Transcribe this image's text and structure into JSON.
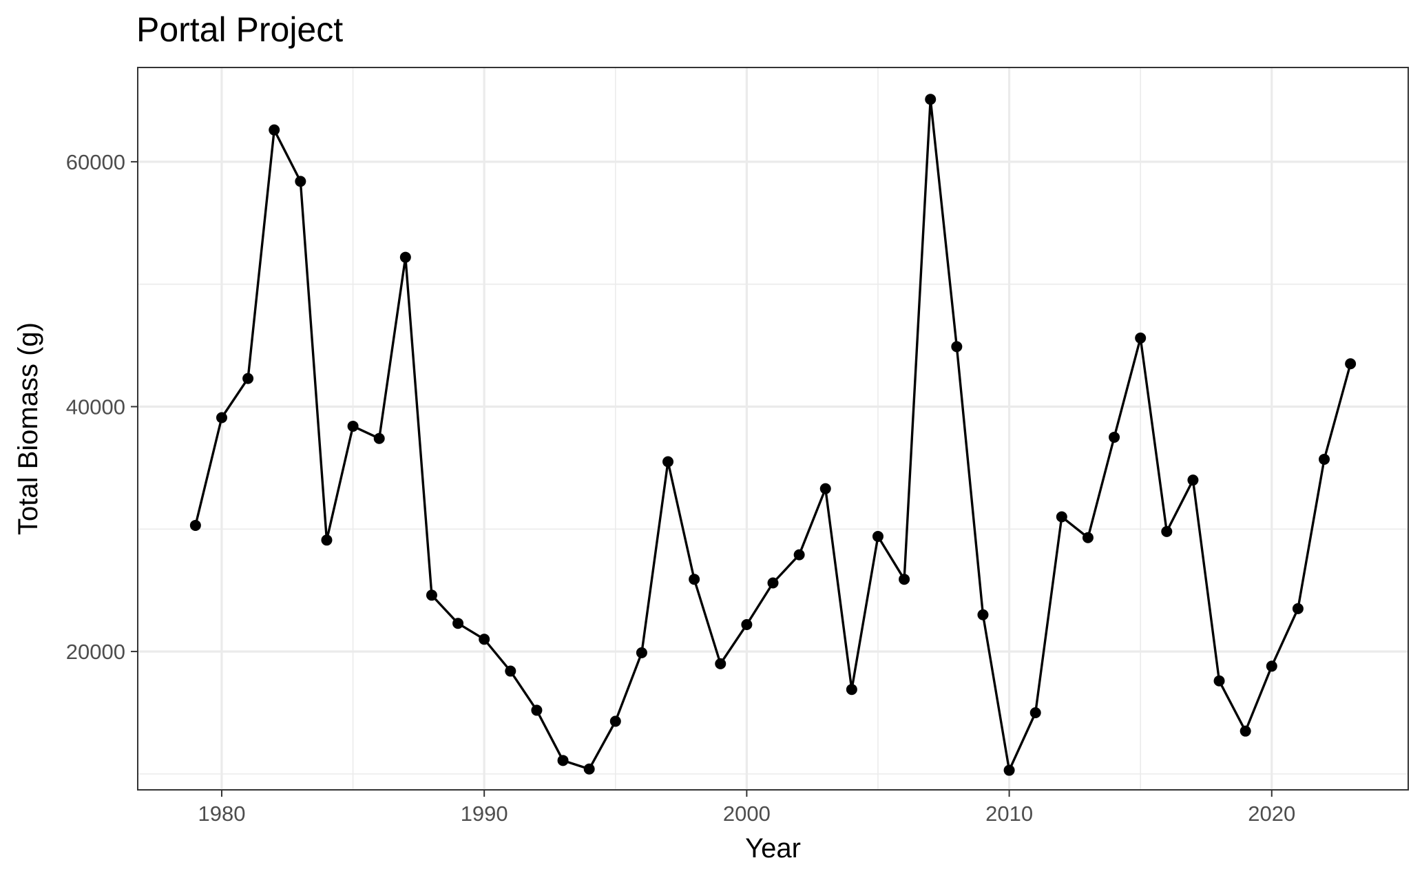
{
  "chart_data": {
    "type": "line",
    "title": "Portal Project",
    "xlabel": "Year",
    "ylabel": "Total Biomass (g)",
    "xlim": [
      1976.8,
      2025.2
    ],
    "ylim": [
      8700,
      67700
    ],
    "x_major_ticks": [
      1980,
      1990,
      2000,
      2010,
      2020
    ],
    "x_minor_ticks": [
      1985,
      1995,
      2005,
      2015
    ],
    "y_major_ticks": [
      20000,
      40000,
      60000
    ],
    "y_minor_ticks": [
      10000,
      30000,
      50000
    ],
    "x_tick_labels": [
      "1980",
      "1990",
      "2000",
      "2010",
      "2020"
    ],
    "y_tick_labels": [
      "20000",
      "40000",
      "60000"
    ],
    "grid": true,
    "legend": "none",
    "line_color": "#000000",
    "point_color": "#000000",
    "series": [
      {
        "x": [
          1979,
          1980,
          1981,
          1982,
          1983,
          1984,
          1985,
          1986,
          1987,
          1988,
          1989,
          1990,
          1991,
          1992,
          1993,
          1994,
          1995,
          1996,
          1997,
          1998,
          1999,
          2000,
          2001,
          2002,
          2003,
          2004,
          2005,
          2006,
          2007,
          2008,
          2009,
          2010,
          2011,
          2012,
          2013,
          2014,
          2015,
          2016,
          2017,
          2018,
          2019,
          2020,
          2021,
          2022,
          2023
        ],
        "y": [
          30300,
          39100,
          42300,
          62600,
          58400,
          29100,
          38400,
          37400,
          52200,
          24600,
          22300,
          21000,
          18400,
          15200,
          11100,
          10400,
          14300,
          19900,
          35500,
          25900,
          19000,
          22200,
          25600,
          27900,
          33300,
          16900,
          29400,
          25900,
          65100,
          44900,
          23000,
          10300,
          15000,
          31000,
          29300,
          37500,
          45600,
          29800,
          34000,
          17600,
          13500,
          18800,
          23500,
          35700,
          43500
        ]
      }
    ]
  }
}
